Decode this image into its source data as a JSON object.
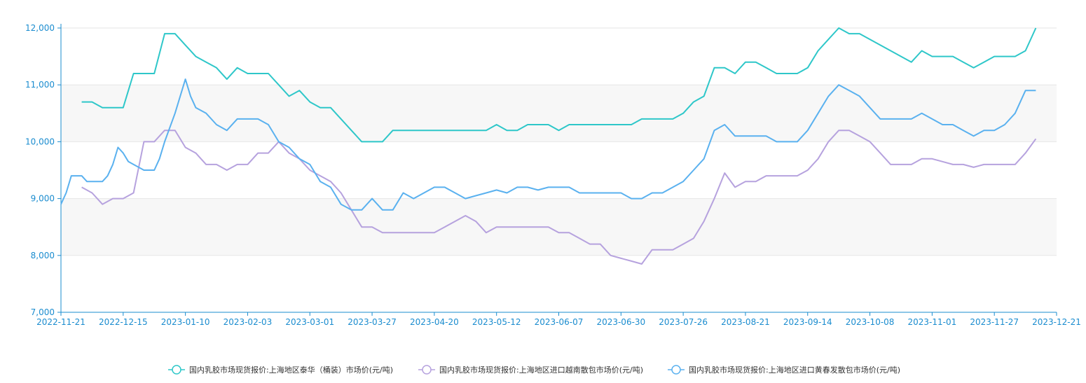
{
  "colors": {
    "axis": "#1a8ccf",
    "band": "#f7f7f7",
    "grid": "#e6e6e6"
  },
  "chart_data": {
    "type": "line",
    "x_ticks": [
      "2022-11-21",
      "2022-12-15",
      "2023-01-10",
      "2023-02-03",
      "2023-03-01",
      "2023-03-27",
      "2023-04-20",
      "2023-05-12",
      "2023-06-07",
      "2023-06-30",
      "2023-07-26",
      "2023-08-21",
      "2023-09-14",
      "2023-10-08",
      "2023-11-01",
      "2023-11-27",
      "2023-12-21"
    ],
    "y_ticks": [
      "7,000",
      "8,000",
      "9,000",
      "10,000",
      "11,000",
      "12,000"
    ],
    "ylim": [
      7000,
      12000
    ],
    "grid": true,
    "legend_position": "bottom-center",
    "series": [
      {
        "name": "国内乳胶市场现货报价:上海地区泰华（桶装）市场价(元/吨)",
        "color": "#2ec7c9",
        "points": [
          [
            2,
            10700
          ],
          [
            3,
            10700
          ],
          [
            4,
            10600
          ],
          [
            5,
            10600
          ],
          [
            6,
            10600
          ],
          [
            7,
            11200
          ],
          [
            8,
            11200
          ],
          [
            9,
            11200
          ],
          [
            10,
            11900
          ],
          [
            11,
            11900
          ],
          [
            12,
            11700
          ],
          [
            13,
            11500
          ],
          [
            14,
            11400
          ],
          [
            15,
            11300
          ],
          [
            16,
            11100
          ],
          [
            17,
            11300
          ],
          [
            18,
            11200
          ],
          [
            19,
            11200
          ],
          [
            20,
            11200
          ],
          [
            21,
            11000
          ],
          [
            22,
            10800
          ],
          [
            23,
            10900
          ],
          [
            24,
            10700
          ],
          [
            25,
            10600
          ],
          [
            26,
            10600
          ],
          [
            27,
            10400
          ],
          [
            28,
            10200
          ],
          [
            29,
            10000
          ],
          [
            30,
            10000
          ],
          [
            31,
            10000
          ],
          [
            32,
            10200
          ],
          [
            33,
            10200
          ],
          [
            34,
            10200
          ],
          [
            35,
            10200
          ],
          [
            36,
            10200
          ],
          [
            37,
            10200
          ],
          [
            38,
            10200
          ],
          [
            39,
            10200
          ],
          [
            40,
            10200
          ],
          [
            41,
            10200
          ],
          [
            42,
            10300
          ],
          [
            43,
            10200
          ],
          [
            44,
            10200
          ],
          [
            45,
            10300
          ],
          [
            46,
            10300
          ],
          [
            47,
            10300
          ],
          [
            48,
            10200
          ],
          [
            49,
            10300
          ],
          [
            50,
            10300
          ],
          [
            51,
            10300
          ],
          [
            52,
            10300
          ],
          [
            53,
            10300
          ],
          [
            54,
            10300
          ],
          [
            55,
            10300
          ],
          [
            56,
            10400
          ],
          [
            57,
            10400
          ],
          [
            58,
            10400
          ],
          [
            59,
            10400
          ],
          [
            60,
            10500
          ],
          [
            61,
            10700
          ],
          [
            62,
            10800
          ],
          [
            63,
            11300
          ],
          [
            64,
            11300
          ],
          [
            65,
            11200
          ],
          [
            66,
            11400
          ],
          [
            67,
            11400
          ],
          [
            68,
            11300
          ],
          [
            69,
            11200
          ],
          [
            70,
            11200
          ],
          [
            71,
            11200
          ],
          [
            72,
            11300
          ],
          [
            73,
            11600
          ],
          [
            74,
            11800
          ],
          [
            75,
            12000
          ],
          [
            76,
            11900
          ],
          [
            77,
            11900
          ],
          [
            78,
            11800
          ],
          [
            79,
            11700
          ],
          [
            80,
            11600
          ],
          [
            81,
            11500
          ],
          [
            82,
            11400
          ],
          [
            83,
            11600
          ],
          [
            84,
            11500
          ],
          [
            85,
            11500
          ],
          [
            86,
            11500
          ],
          [
            87,
            11400
          ],
          [
            88,
            11300
          ],
          [
            89,
            11400
          ],
          [
            90,
            11500
          ],
          [
            91,
            11500
          ],
          [
            92,
            11500
          ],
          [
            93,
            11600
          ],
          [
            94,
            12000
          ]
        ]
      },
      {
        "name": "国内乳胶市场现货报价:上海地区进口越南散包市场价(元/吨)",
        "color": "#b6a2de",
        "points": [
          [
            2,
            9200
          ],
          [
            3,
            9100
          ],
          [
            4,
            8900
          ],
          [
            5,
            9000
          ],
          [
            6,
            9000
          ],
          [
            7,
            9100
          ],
          [
            8,
            10000
          ],
          [
            9,
            10000
          ],
          [
            10,
            10200
          ],
          [
            11,
            10200
          ],
          [
            12,
            9900
          ],
          [
            13,
            9800
          ],
          [
            14,
            9600
          ],
          [
            15,
            9600
          ],
          [
            16,
            9500
          ],
          [
            17,
            9600
          ],
          [
            18,
            9600
          ],
          [
            19,
            9800
          ],
          [
            20,
            9800
          ],
          [
            21,
            10000
          ],
          [
            22,
            9800
          ],
          [
            23,
            9700
          ],
          [
            24,
            9500
          ],
          [
            25,
            9400
          ],
          [
            26,
            9300
          ],
          [
            27,
            9100
          ],
          [
            28,
            8800
          ],
          [
            29,
            8500
          ],
          [
            30,
            8500
          ],
          [
            31,
            8400
          ],
          [
            32,
            8400
          ],
          [
            33,
            8400
          ],
          [
            34,
            8400
          ],
          [
            35,
            8400
          ],
          [
            36,
            8400
          ],
          [
            37,
            8500
          ],
          [
            38,
            8600
          ],
          [
            39,
            8700
          ],
          [
            40,
            8600
          ],
          [
            41,
            8400
          ],
          [
            42,
            8500
          ],
          [
            43,
            8500
          ],
          [
            44,
            8500
          ],
          [
            45,
            8500
          ],
          [
            46,
            8500
          ],
          [
            47,
            8500
          ],
          [
            48,
            8400
          ],
          [
            49,
            8400
          ],
          [
            50,
            8300
          ],
          [
            51,
            8200
          ],
          [
            52,
            8200
          ],
          [
            53,
            8000
          ],
          [
            54,
            7950
          ],
          [
            55,
            7900
          ],
          [
            56,
            7850
          ],
          [
            57,
            8100
          ],
          [
            58,
            8100
          ],
          [
            59,
            8100
          ],
          [
            60,
            8200
          ],
          [
            61,
            8300
          ],
          [
            62,
            8600
          ],
          [
            63,
            9000
          ],
          [
            64,
            9450
          ],
          [
            65,
            9200
          ],
          [
            66,
            9300
          ],
          [
            67,
            9300
          ],
          [
            68,
            9400
          ],
          [
            69,
            9400
          ],
          [
            70,
            9400
          ],
          [
            71,
            9400
          ],
          [
            72,
            9500
          ],
          [
            73,
            9700
          ],
          [
            74,
            10000
          ],
          [
            75,
            10200
          ],
          [
            76,
            10200
          ],
          [
            77,
            10100
          ],
          [
            78,
            10000
          ],
          [
            79,
            9800
          ],
          [
            80,
            9600
          ],
          [
            81,
            9600
          ],
          [
            82,
            9600
          ],
          [
            83,
            9700
          ],
          [
            84,
            9700
          ],
          [
            85,
            9650
          ],
          [
            86,
            9600
          ],
          [
            87,
            9600
          ],
          [
            88,
            9550
          ],
          [
            89,
            9600
          ],
          [
            90,
            9600
          ],
          [
            91,
            9600
          ],
          [
            92,
            9600
          ],
          [
            93,
            9800
          ],
          [
            94,
            10050
          ]
        ]
      },
      {
        "name": "国内乳胶市场现货报价:上海地区进口黄春发散包市场价(元/吨)",
        "color": "#5ab1ef",
        "points": [
          [
            0,
            8900
          ],
          [
            0.5,
            9100
          ],
          [
            1,
            9400
          ],
          [
            2,
            9400
          ],
          [
            2.5,
            9300
          ],
          [
            3,
            9300
          ],
          [
            4,
            9300
          ],
          [
            4.5,
            9400
          ],
          [
            5,
            9600
          ],
          [
            5.5,
            9900
          ],
          [
            6,
            9800
          ],
          [
            6.5,
            9650
          ],
          [
            7,
            9600
          ],
          [
            8,
            9500
          ],
          [
            9,
            9500
          ],
          [
            9.5,
            9700
          ],
          [
            10,
            10000
          ],
          [
            11,
            10500
          ],
          [
            12,
            11100
          ],
          [
            12.5,
            10800
          ],
          [
            13,
            10600
          ],
          [
            14,
            10500
          ],
          [
            15,
            10300
          ],
          [
            16,
            10200
          ],
          [
            17,
            10400
          ],
          [
            18,
            10400
          ],
          [
            19,
            10400
          ],
          [
            20,
            10300
          ],
          [
            21,
            10000
          ],
          [
            22,
            9900
          ],
          [
            23,
            9700
          ],
          [
            24,
            9600
          ],
          [
            25,
            9300
          ],
          [
            26,
            9200
          ],
          [
            27,
            8900
          ],
          [
            28,
            8800
          ],
          [
            29,
            8800
          ],
          [
            30,
            9000
          ],
          [
            31,
            8800
          ],
          [
            32,
            8800
          ],
          [
            33,
            9100
          ],
          [
            34,
            9000
          ],
          [
            35,
            9100
          ],
          [
            36,
            9200
          ],
          [
            37,
            9200
          ],
          [
            38,
            9100
          ],
          [
            39,
            9000
          ],
          [
            40,
            9050
          ],
          [
            41,
            9100
          ],
          [
            42,
            9150
          ],
          [
            43,
            9100
          ],
          [
            44,
            9200
          ],
          [
            45,
            9200
          ],
          [
            46,
            9150
          ],
          [
            47,
            9200
          ],
          [
            48,
            9200
          ],
          [
            49,
            9200
          ],
          [
            50,
            9100
          ],
          [
            51,
            9100
          ],
          [
            52,
            9100
          ],
          [
            53,
            9100
          ],
          [
            54,
            9100
          ],
          [
            55,
            9000
          ],
          [
            56,
            9000
          ],
          [
            57,
            9100
          ],
          [
            58,
            9100
          ],
          [
            59,
            9200
          ],
          [
            60,
            9300
          ],
          [
            61,
            9500
          ],
          [
            62,
            9700
          ],
          [
            63,
            10200
          ],
          [
            64,
            10300
          ],
          [
            65,
            10100
          ],
          [
            66,
            10100
          ],
          [
            67,
            10100
          ],
          [
            68,
            10100
          ],
          [
            69,
            10000
          ],
          [
            70,
            10000
          ],
          [
            71,
            10000
          ],
          [
            72,
            10200
          ],
          [
            73,
            10500
          ],
          [
            74,
            10800
          ],
          [
            75,
            11000
          ],
          [
            76,
            10900
          ],
          [
            77,
            10800
          ],
          [
            78,
            10600
          ],
          [
            79,
            10400
          ],
          [
            80,
            10400
          ],
          [
            81,
            10400
          ],
          [
            82,
            10400
          ],
          [
            83,
            10500
          ],
          [
            84,
            10400
          ],
          [
            85,
            10300
          ],
          [
            86,
            10300
          ],
          [
            87,
            10200
          ],
          [
            88,
            10100
          ],
          [
            89,
            10200
          ],
          [
            90,
            10200
          ],
          [
            91,
            10300
          ],
          [
            92,
            10500
          ],
          [
            93,
            10900
          ],
          [
            94,
            10900
          ]
        ]
      }
    ]
  }
}
